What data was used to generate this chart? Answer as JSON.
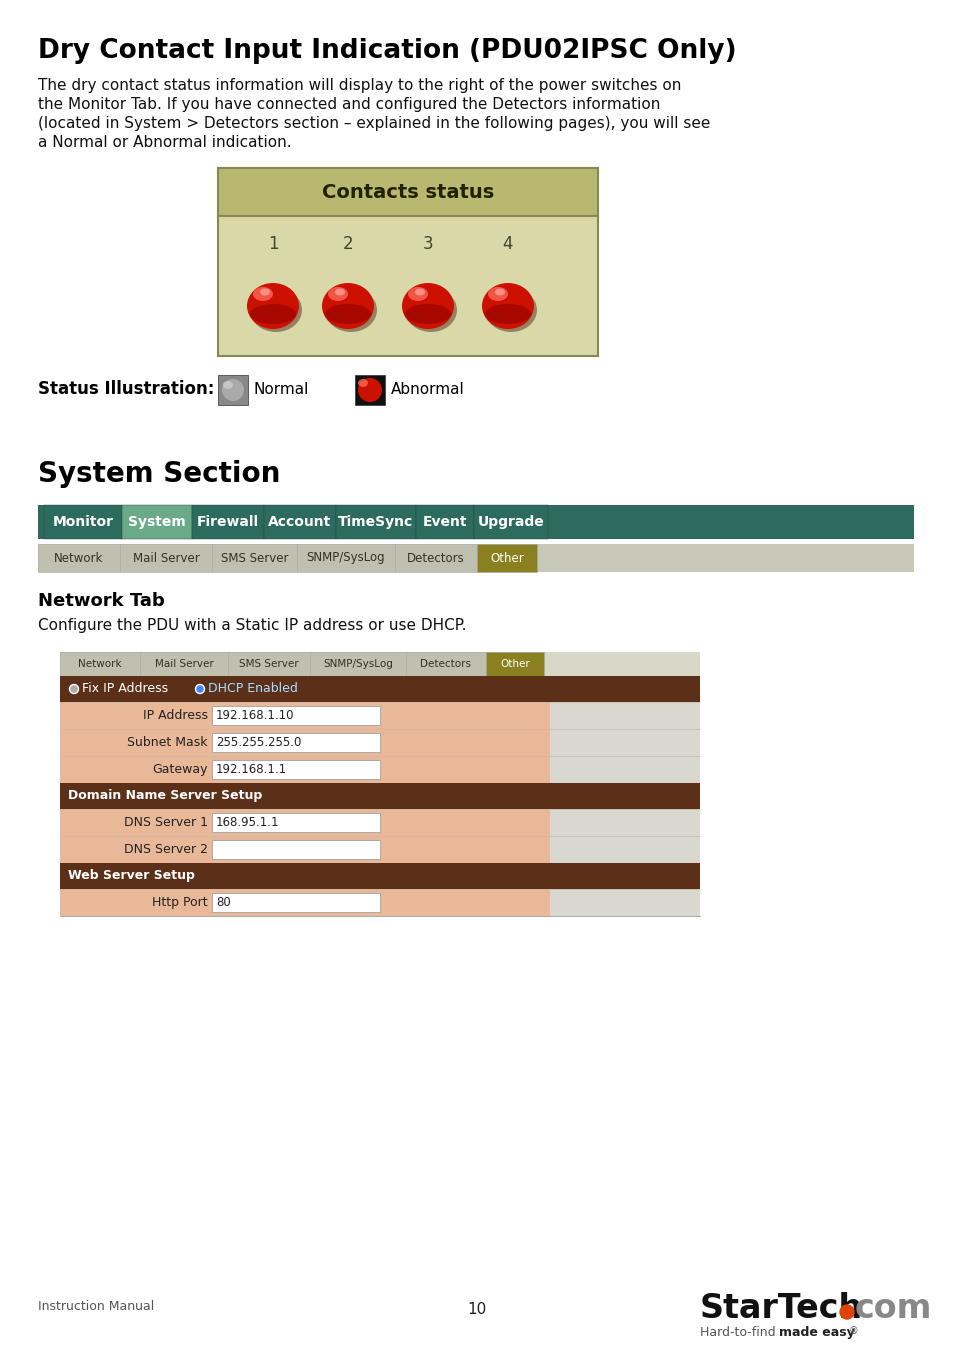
{
  "title": "Dry Contact Input Indication (PDU02IPSC Only)",
  "body_text_lines": [
    "The dry contact status information will display to the right of the power switches on",
    "the Monitor Tab. If you have connected and configured the Detectors information",
    "(located in System > Detectors section – explained in the following pages), you will see",
    "a Normal or Abnormal indication."
  ],
  "contacts_title": "Contacts status",
  "contacts_numbers": [
    "1",
    "2",
    "3",
    "4"
  ],
  "status_label": "Status Illustration:",
  "normal_label": "Normal",
  "abnormal_label": "Abnormal",
  "section_title": "System Section",
  "nav_tabs": [
    "Monitor",
    "System",
    "Firewall",
    "Account",
    "TimeSync",
    "Event",
    "Upgrade"
  ],
  "nav_active": "System",
  "sub_tabs": [
    "⌂ Network",
    "✉ Mail Server",
    "≡ SMS Server",
    "⊙ SNMP/SysLog",
    "↔ Detectors",
    "\\ Other"
  ],
  "sub_active_idx": 5,
  "network_tab_title": "Network Tab",
  "network_tab_desc": "Configure the PDU with a Static IP address or use DHCP.",
  "form_header_color": "#5c3018",
  "form_row_color_light": "#e8b898",
  "form_row_color_dark": "#5c3018",
  "nav_tab_color": "#2d6b5e",
  "nav_tab_active_color": "#6aaa88",
  "sub_tab_color": "#b8b8a8",
  "sub_tab_active_color": "#8a8020",
  "contacts_bg_header": "#b8b870",
  "contacts_bg_body": "#d8d8a8",
  "page_number": "10",
  "footer_left": "Instruction Manual",
  "bg_color": "#ffffff"
}
